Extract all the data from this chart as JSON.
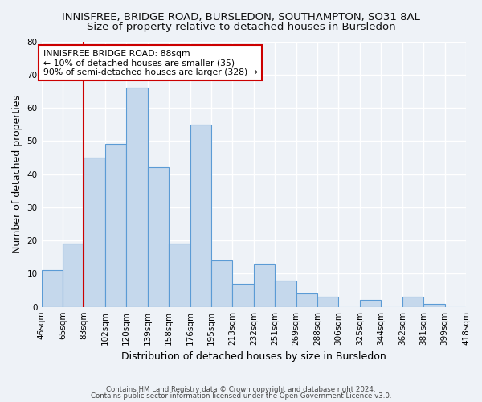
{
  "title": "INNISFREE, BRIDGE ROAD, BURSLEDON, SOUTHAMPTON, SO31 8AL",
  "subtitle": "Size of property relative to detached houses in Bursledon",
  "xlabel": "Distribution of detached houses by size in Bursledon",
  "ylabel": "Number of detached properties",
  "bar_values": [
    11,
    19,
    45,
    49,
    66,
    42,
    19,
    55,
    14,
    7,
    13,
    8,
    4,
    3,
    0,
    2,
    0,
    3,
    1,
    0
  ],
  "bin_labels": [
    "46sqm",
    "65sqm",
    "83sqm",
    "102sqm",
    "120sqm",
    "139sqm",
    "158sqm",
    "176sqm",
    "195sqm",
    "213sqm",
    "232sqm",
    "251sqm",
    "269sqm",
    "288sqm",
    "306sqm",
    "325sqm",
    "344sqm",
    "362sqm",
    "381sqm",
    "399sqm",
    "418sqm"
  ],
  "bar_color": "#c5d8ec",
  "bar_edge_color": "#5b9bd5",
  "vline_x_index": 2,
  "vline_color": "#cc0000",
  "annotation_title": "INNISFREE BRIDGE ROAD: 88sqm",
  "annotation_line1": "← 10% of detached houses are smaller (35)",
  "annotation_line2": "90% of semi-detached houses are larger (328) →",
  "annotation_box_color": "#ffffff",
  "annotation_box_edge": "#cc0000",
  "ylim": [
    0,
    80
  ],
  "yticks": [
    0,
    10,
    20,
    30,
    40,
    50,
    60,
    70,
    80
  ],
  "footer1": "Contains HM Land Registry data © Crown copyright and database right 2024.",
  "footer2": "Contains public sector information licensed under the Open Government Licence v3.0.",
  "background_color": "#eef2f7",
  "grid_color": "#ffffff",
  "title_fontsize": 9.5,
  "subtitle_fontsize": 9.5,
  "axis_label_fontsize": 9,
  "tick_fontsize": 7.5,
  "footer_fontsize": 6.2
}
